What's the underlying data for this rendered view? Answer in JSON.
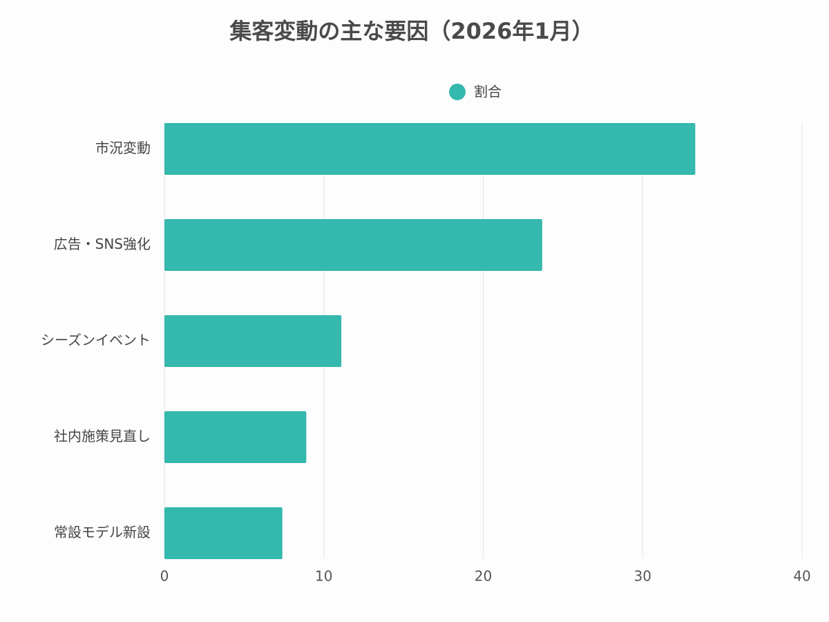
{
  "chart_data": {
    "type": "bar",
    "orientation": "horizontal",
    "title": "集客変動の主な要因（2026年1月）",
    "categories": [
      "市況変動",
      "広告・SNS強化",
      "シーズンイベント",
      "社内施策見直し",
      "常設モデル新設"
    ],
    "series": [
      {
        "name": "割合",
        "color": "#35b8ad",
        "values": [
          33.3,
          23.7,
          11.1,
          8.9,
          7.4
        ]
      }
    ],
    "xlim": [
      0,
      40
    ],
    "xticks": [
      0,
      10,
      20,
      30,
      40
    ],
    "grid": true,
    "legend": "top"
  }
}
